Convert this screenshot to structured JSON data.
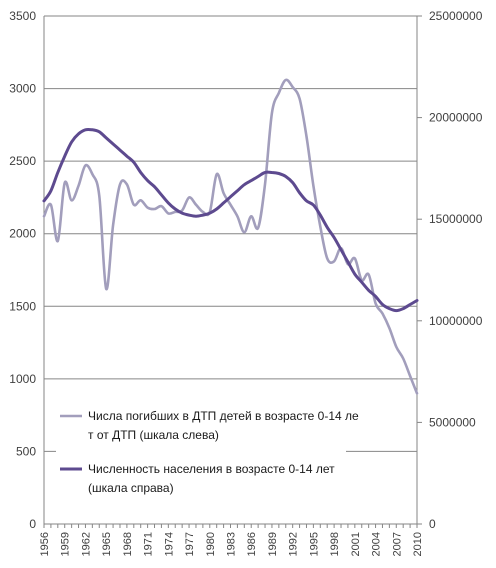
{
  "chart_data": {
    "type": "line",
    "dual_axis": true,
    "grid": true,
    "legend_position": "inside-bottom-left",
    "x": [
      1956,
      1957,
      1958,
      1959,
      1960,
      1961,
      1962,
      1963,
      1964,
      1965,
      1966,
      1967,
      1968,
      1969,
      1970,
      1971,
      1972,
      1973,
      1974,
      1975,
      1976,
      1977,
      1978,
      1979,
      1980,
      1981,
      1982,
      1983,
      1984,
      1985,
      1986,
      1987,
      1988,
      1989,
      1990,
      1991,
      1992,
      1993,
      1994,
      1995,
      1996,
      1997,
      1998,
      1999,
      2000,
      2001,
      2002,
      2003,
      2004,
      2005,
      2006,
      2007,
      2008,
      2009,
      2010
    ],
    "x_tick_labels": [
      "1956",
      "1959",
      "1962",
      "1965",
      "1968",
      "1971",
      "1974",
      "1977",
      "1980",
      "1983",
      "1986",
      "1989",
      "1992",
      "1995",
      "1998",
      "2001",
      "2004",
      "2007",
      "2010"
    ],
    "y_left": {
      "lim": [
        0,
        3500
      ],
      "ticks": [
        "0",
        "500",
        "1000",
        "1500",
        "2000",
        "2500",
        "3000",
        "3500"
      ]
    },
    "y_right": {
      "lim": [
        0,
        25000000
      ],
      "ticks": [
        "0",
        "5000000",
        "10000000",
        "15000000",
        "20000000",
        "25000000"
      ]
    },
    "series": [
      {
        "name": "Числа погибших в ДТП детей в возрасте 0-14 лет от ДТП  (шкала слева)",
        "axis": "left",
        "color": "#a29ebc",
        "values": [
          2120,
          2200,
          1950,
          2350,
          2230,
          2330,
          2470,
          2410,
          2260,
          1620,
          2060,
          2340,
          2340,
          2200,
          2230,
          2180,
          2170,
          2190,
          2140,
          2150,
          2160,
          2250,
          2200,
          2150,
          2150,
          2410,
          2280,
          2200,
          2120,
          2010,
          2120,
          2040,
          2340,
          2830,
          2970,
          3060,
          3010,
          2930,
          2670,
          2330,
          2050,
          1830,
          1810,
          1900,
          1790,
          1830,
          1680,
          1720,
          1520,
          1450,
          1350,
          1220,
          1140,
          1020,
          900
        ]
      },
      {
        "name": "Численность населения в возрасте 0-14 лет (шкала справа)",
        "axis": "right",
        "color": "#5d4a8f",
        "values": [
          15900000,
          16400000,
          17300000,
          18100000,
          18800000,
          19200000,
          19400000,
          19400000,
          19300000,
          19000000,
          18700000,
          18400000,
          18100000,
          17800000,
          17300000,
          16900000,
          16600000,
          16200000,
          15800000,
          15500000,
          15300000,
          15200000,
          15150000,
          15200000,
          15300000,
          15500000,
          15800000,
          16100000,
          16400000,
          16700000,
          16900000,
          17100000,
          17300000,
          17300000,
          17250000,
          17100000,
          16800000,
          16300000,
          15900000,
          15700000,
          15200000,
          14600000,
          14100000,
          13500000,
          12900000,
          12300000,
          11900000,
          11500000,
          11200000,
          10800000,
          10600000,
          10500000,
          10600000,
          10800000,
          11000000
        ]
      }
    ]
  }
}
